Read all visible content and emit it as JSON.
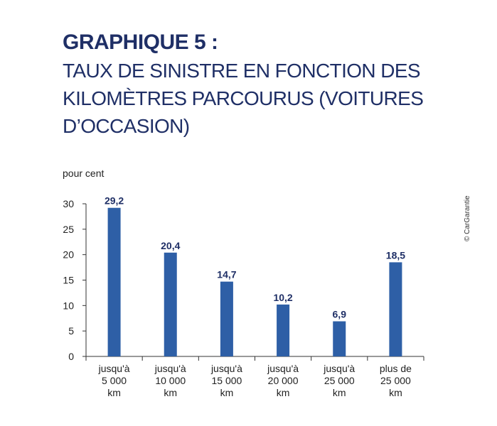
{
  "title": {
    "main": "GRAPHIQUE 5 :",
    "sub": "TAUX DE SINISTRE EN FONCTION DES KILOMÈTRES PARCOURUS (VOITURES D’OCCASION)"
  },
  "copyright": "© CarGarantie",
  "chart_data": {
    "type": "bar",
    "categories": [
      [
        "jusqu'à",
        "5 000",
        "km"
      ],
      [
        "jusqu'à",
        "10 000",
        "km"
      ],
      [
        "jusqu'à",
        "15 000",
        "km"
      ],
      [
        "jusqu'à",
        "20 000",
        "km"
      ],
      [
        "jusqu'à",
        "25 000",
        "km"
      ],
      [
        "plus de",
        "25 000",
        "km"
      ]
    ],
    "values": [
      29.2,
      20.4,
      14.7,
      10.2,
      6.9,
      18.5
    ],
    "value_labels": [
      "29,2",
      "20,4",
      "14,7",
      "10,2",
      "6,9",
      "18,5"
    ],
    "ylabel": "pour cent",
    "xlabel": "",
    "ylim": [
      0,
      30
    ],
    "yticks": [
      0,
      5,
      10,
      15,
      20,
      25,
      30
    ],
    "grid": false,
    "bar_color": "#2e5fa6",
    "axis_color": "#333333"
  }
}
